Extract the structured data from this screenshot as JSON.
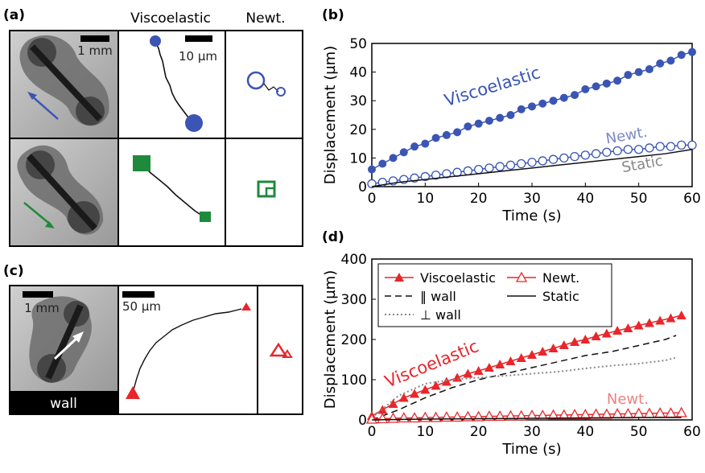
{
  "panels": {
    "a": {
      "letter": "(a)",
      "col_viscoelastic": "Viscoelastic",
      "col_newt": "Newt.",
      "scale_mm": "1 mm",
      "scale_um": "10 µm"
    },
    "b": {
      "letter": "(b)"
    },
    "c": {
      "letter": "(c)",
      "scale_mm": "1 mm",
      "scale_um": "50 µm",
      "wall_label": "wall"
    },
    "d": {
      "letter": "(d)"
    }
  },
  "colors": {
    "blue": "#3a55b4",
    "green": "#1e8a3c",
    "red": "#e8262b",
    "pink": "#f08080",
    "gray": "#888888"
  },
  "icons": {
    "arrow_a_top": "arrow-icon",
    "arrow_a_bottom": "arrow-icon",
    "arrow_c": "arrow-icon"
  },
  "chart_data": [
    {
      "type": "line",
      "panel": "b",
      "xlabel": "Time (s)",
      "ylabel": "Displacement (µm)",
      "xlim": [
        0,
        60
      ],
      "ylim": [
        0,
        50
      ],
      "xticks": [
        0,
        10,
        20,
        30,
        40,
        50,
        60
      ],
      "yticks": [
        0,
        10,
        20,
        30,
        40,
        50
      ],
      "annotations": [
        "Viscoelastic",
        "Newt.",
        "Static"
      ],
      "series": [
        {
          "name": "Viscoelastic",
          "color": "#3a55b4",
          "marker": "filled-circle",
          "x": [
            0,
            2,
            4,
            6,
            8,
            10,
            12,
            14,
            16,
            18,
            20,
            22,
            24,
            26,
            28,
            30,
            32,
            34,
            36,
            38,
            40,
            42,
            44,
            46,
            48,
            50,
            52,
            54,
            56,
            58,
            60
          ],
          "y": [
            6,
            8,
            10,
            12,
            14,
            15,
            17,
            18,
            19,
            21,
            22,
            23,
            24,
            25,
            27,
            28,
            29,
            30,
            31,
            32,
            34,
            35,
            36,
            37,
            39,
            40,
            41,
            43,
            44,
            46,
            47
          ]
        },
        {
          "name": "Newt.",
          "color": "#3a55b4",
          "marker": "open-circle",
          "x": [
            0,
            2,
            4,
            6,
            8,
            10,
            12,
            14,
            16,
            18,
            20,
            22,
            24,
            26,
            28,
            30,
            32,
            34,
            36,
            38,
            40,
            42,
            44,
            46,
            48,
            50,
            52,
            54,
            56,
            58,
            60
          ],
          "y": [
            1,
            1.5,
            2,
            2.5,
            3,
            3.5,
            4,
            4.5,
            5,
            5.5,
            6,
            6.5,
            7,
            7.5,
            8,
            8.5,
            9,
            9.5,
            10,
            10.5,
            11,
            11.5,
            12,
            12.5,
            13,
            13,
            13.5,
            14,
            14,
            14.5,
            14.5
          ]
        },
        {
          "name": "Static",
          "color": "#111111",
          "marker": "none",
          "x": [
            0,
            5,
            10,
            15,
            20,
            25,
            30,
            35,
            40,
            45,
            50,
            55,
            60
          ],
          "y": [
            0,
            1.5,
            2.5,
            3.5,
            4.5,
            5.5,
            6.5,
            7.5,
            8.5,
            9.5,
            10.5,
            11.5,
            13
          ]
        }
      ]
    },
    {
      "type": "line",
      "panel": "d",
      "xlabel": "Time (s)",
      "ylabel": "Displacement (µm)",
      "xlim": [
        0,
        60
      ],
      "ylim": [
        0,
        400
      ],
      "xticks": [
        0,
        10,
        20,
        30,
        40,
        50,
        60
      ],
      "yticks": [
        0,
        100,
        200,
        300,
        400
      ],
      "legend_position": "top",
      "annotations": [
        "Viscoelastic",
        "Newt."
      ],
      "series": [
        {
          "name": "Viscoelastic",
          "color": "#e8262b",
          "marker": "filled-triangle",
          "x": [
            0,
            2,
            4,
            6,
            8,
            10,
            12,
            14,
            16,
            18,
            20,
            22,
            24,
            26,
            28,
            30,
            32,
            34,
            36,
            38,
            40,
            42,
            44,
            46,
            48,
            50,
            52,
            54,
            56,
            58
          ],
          "y": [
            10,
            25,
            40,
            55,
            65,
            75,
            85,
            95,
            105,
            115,
            122,
            130,
            138,
            146,
            154,
            162,
            170,
            178,
            186,
            194,
            200,
            208,
            215,
            222,
            228,
            235,
            241,
            247,
            253,
            260
          ]
        },
        {
          "name": "‖ wall",
          "color": "#111111",
          "dash": "dashed",
          "x": [
            0,
            5,
            10,
            15,
            20,
            25,
            30,
            35,
            40,
            45,
            50,
            55,
            57
          ],
          "y": [
            0,
            25,
            55,
            80,
            100,
            115,
            130,
            145,
            160,
            170,
            185,
            200,
            210
          ]
        },
        {
          "name": "⊥ wall",
          "color": "#888888",
          "dash": "dotted",
          "x": [
            0,
            5,
            10,
            15,
            20,
            25,
            30,
            35,
            40,
            45,
            50,
            55,
            57
          ],
          "y": [
            5,
            60,
            90,
            100,
            105,
            110,
            115,
            120,
            128,
            135,
            140,
            148,
            155
          ]
        },
        {
          "name": "Newt.",
          "color": "#e8262b",
          "marker": "open-triangle",
          "x": [
            0,
            2,
            4,
            6,
            8,
            10,
            12,
            14,
            16,
            18,
            20,
            22,
            24,
            26,
            28,
            30,
            32,
            34,
            36,
            38,
            40,
            42,
            44,
            46,
            48,
            50,
            52,
            54,
            56,
            58
          ],
          "y": [
            2,
            3,
            4,
            5,
            5,
            6,
            6,
            7,
            7,
            8,
            8,
            9,
            9,
            10,
            10,
            11,
            11,
            12,
            12,
            13,
            13,
            14,
            14,
            15,
            15,
            16,
            16,
            17,
            17,
            18
          ]
        },
        {
          "name": "Static",
          "color": "#111111",
          "marker": "none",
          "x": [
            0,
            10,
            20,
            30,
            40,
            50,
            58
          ],
          "y": [
            0,
            2,
            3,
            4,
            5,
            6,
            6
          ]
        }
      ]
    }
  ]
}
